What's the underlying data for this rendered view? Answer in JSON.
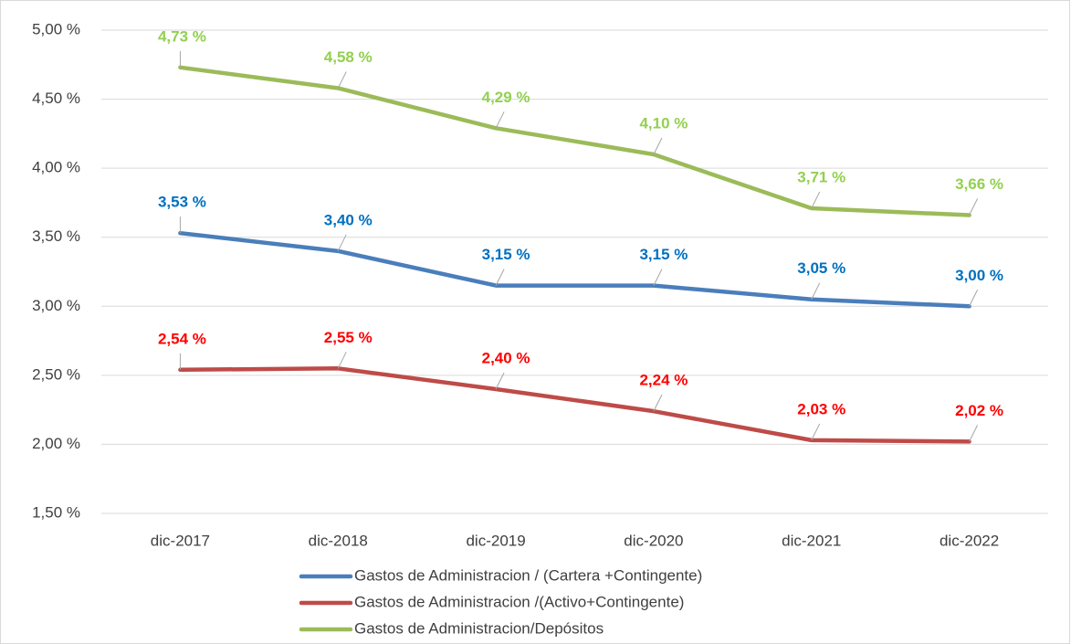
{
  "chart_data": {
    "type": "line",
    "categories": [
      "dic-2017",
      "dic-2018",
      "dic-2019",
      "dic-2020",
      "dic-2021",
      "dic-2022"
    ],
    "series": [
      {
        "name": "Gastos de Administracion / (Cartera +Contingente)",
        "color": "#4a7ebb",
        "label_color": "#0070c0",
        "values": [
          3.53,
          3.4,
          3.15,
          3.15,
          3.05,
          3.0
        ],
        "value_labels": [
          "3,53 %",
          "3,40 %",
          "3,15 %",
          "3,15 %",
          "3,05 %",
          "3,00 %"
        ]
      },
      {
        "name": "Gastos de Administracion /(Activo+Contingente)",
        "color": "#be4b48",
        "label_color": "#ff0000",
        "values": [
          2.54,
          2.55,
          2.4,
          2.24,
          2.03,
          2.02
        ],
        "value_labels": [
          "2,54 %",
          "2,55 %",
          "2,40 %",
          "2,24 %",
          "2,03 %",
          "2,02 %"
        ]
      },
      {
        "name": "Gastos de Administracion/Depósitos",
        "color": "#9bbb59",
        "label_color": "#92d050",
        "values": [
          4.73,
          4.58,
          4.29,
          4.1,
          3.71,
          3.66
        ],
        "value_labels": [
          "4,73 %",
          "4,58 %",
          "4,29 %",
          "4,10 %",
          "3,71 %",
          "3,66 %"
        ]
      }
    ],
    "ylim": [
      1.5,
      5.0
    ],
    "yticks": [
      {
        "value": 1.5,
        "label": "1,50 %"
      },
      {
        "value": 2.0,
        "label": "2,00 %"
      },
      {
        "value": 2.5,
        "label": "2,50 %"
      },
      {
        "value": 3.0,
        "label": "3,00 %"
      },
      {
        "value": 3.5,
        "label": "3,50 %"
      },
      {
        "value": 4.0,
        "label": "4,00 %"
      },
      {
        "value": 4.5,
        "label": "4,50 %"
      },
      {
        "value": 5.0,
        "label": "5,00 %"
      }
    ],
    "grid": true,
    "legend": "bottom"
  }
}
